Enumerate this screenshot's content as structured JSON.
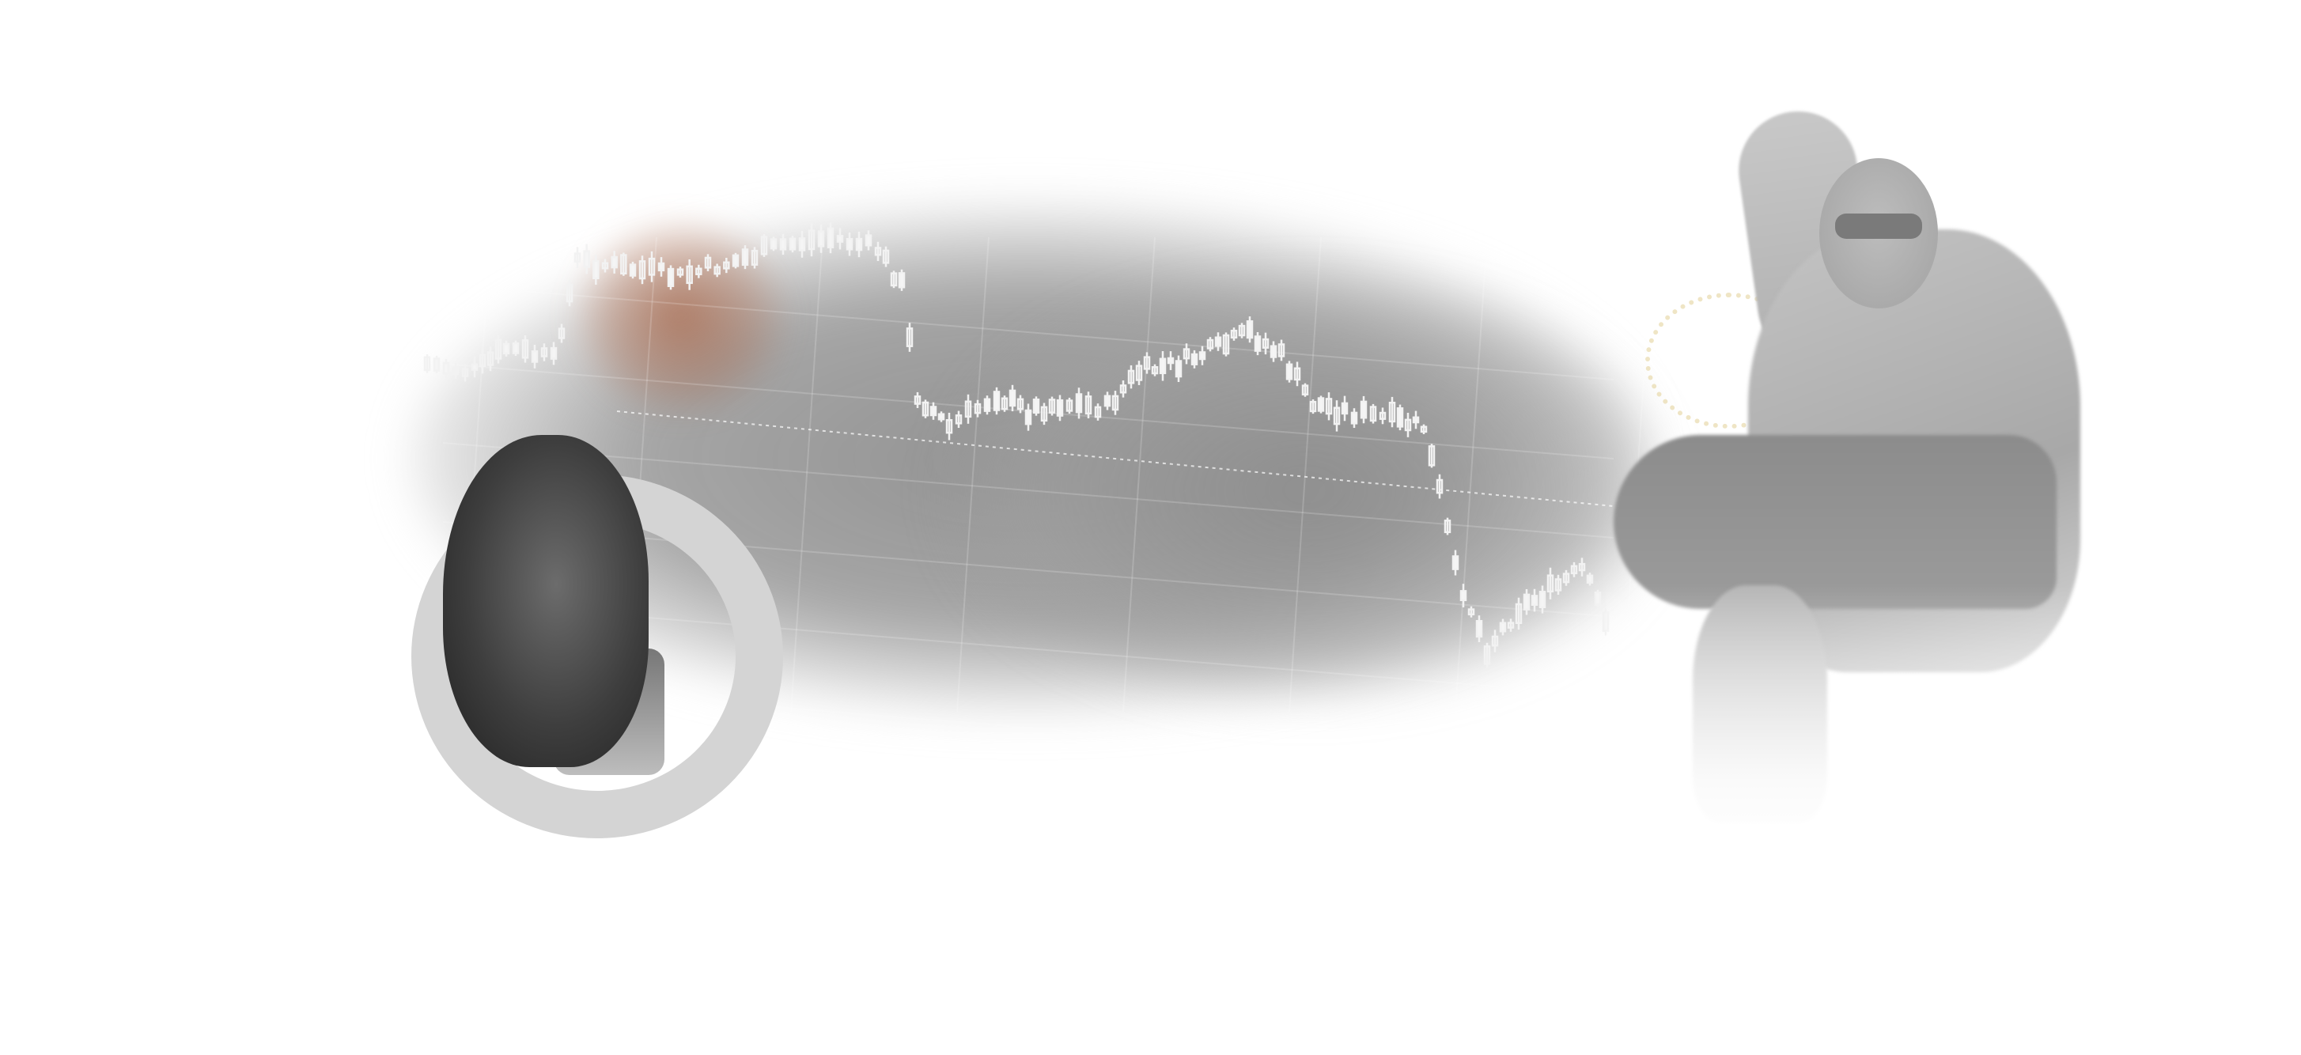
{
  "scene": {
    "background_color": "#ffffff",
    "cloud_color": "#8c8c8c",
    "accent_glow_color": "#a86446",
    "chart_line_color": "#f2f2f2",
    "bust_ring_color": "#d4d4d4",
    "right_statue_color": "#b4b4b4"
  },
  "icons": [
    "classical-bust-image",
    "reclining-statue-image",
    "price-chart-graphic"
  ]
}
